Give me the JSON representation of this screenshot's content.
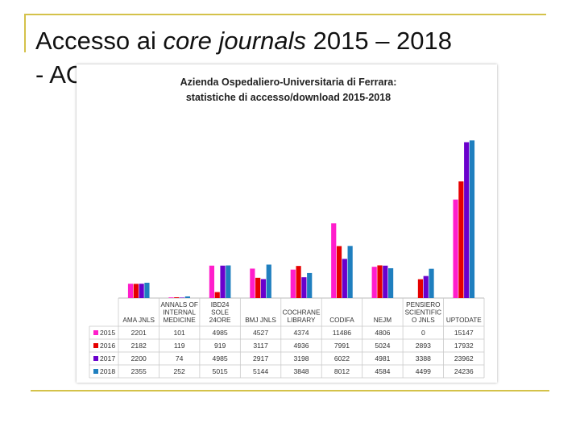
{
  "slide": {
    "title_prefix": "Accesso ai ",
    "title_italic": "core journals",
    "title_suffix": " 2015 – 2018",
    "title_line2": "- AOU"
  },
  "chart_data": {
    "type": "bar",
    "title_lines": [
      "Azienda Ospedaliero-Universitaria di Ferrara:",
      "statistiche di accesso/download 2015-2018"
    ],
    "categories": [
      [
        "AMA JNLS"
      ],
      [
        "ANNALS OF",
        "INTERNAL",
        "MEDICINE"
      ],
      [
        "IBD24",
        "SOLE",
        "24ORE"
      ],
      [
        "BMJ JNLS"
      ],
      [
        "COCHRANE",
        "LIBRARY"
      ],
      [
        "CODIFA"
      ],
      [
        "NEJM"
      ],
      [
        "PENSIERO",
        "SCIENTIFIC",
        "O JNLS"
      ],
      [
        "UPTODATE"
      ]
    ],
    "series": [
      {
        "name": "2015",
        "color": "#ff1ecb",
        "values": [
          2201,
          101,
          4985,
          4527,
          4374,
          11486,
          4806,
          0,
          15147
        ]
      },
      {
        "name": "2016",
        "color": "#e60000",
        "values": [
          2182,
          119,
          919,
          3117,
          4936,
          7991,
          5024,
          2893,
          17932
        ]
      },
      {
        "name": "2017",
        "color": "#6a00cc",
        "values": [
          2200,
          74,
          4985,
          2917,
          3198,
          6022,
          4981,
          3388,
          23962
        ]
      },
      {
        "name": "2018",
        "color": "#1f7fbf",
        "values": [
          2355,
          252,
          5015,
          5144,
          3848,
          8012,
          4584,
          4499,
          24236
        ]
      }
    ],
    "ylim": [
      0,
      27000
    ],
    "legend": "data-table-left",
    "grid": false
  }
}
